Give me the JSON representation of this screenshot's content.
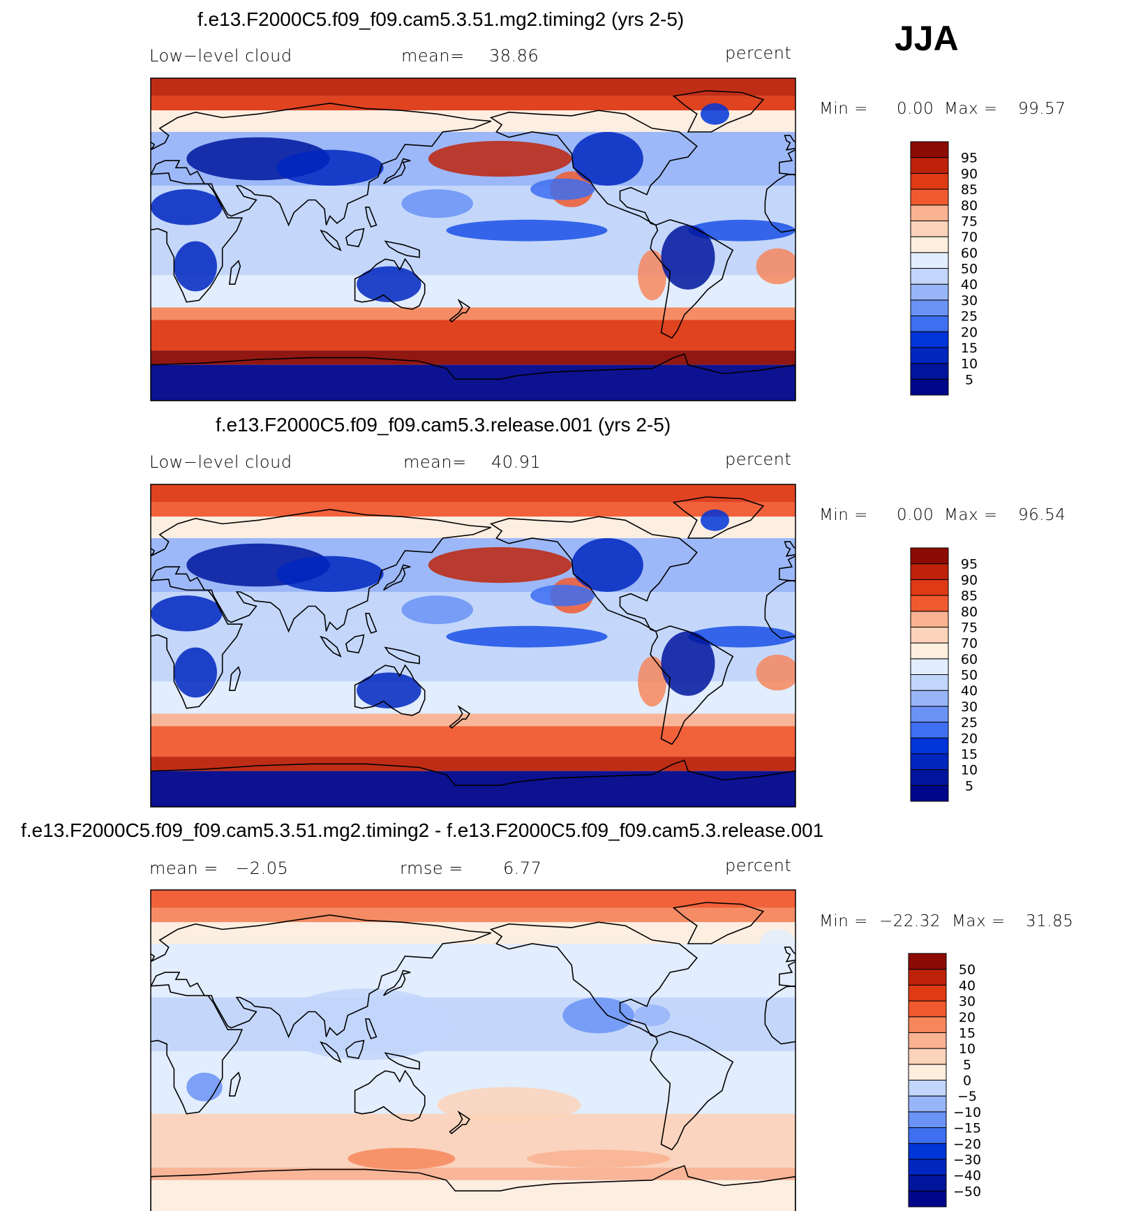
{
  "season": "JJA",
  "colors": {
    "abs": [
      "#00068a",
      "#00159c",
      "#0026c0",
      "#0035d8",
      "#1a50e6",
      "#3d6ff0",
      "#6a93f5",
      "#98b5f8",
      "#c2d6fb",
      "#e2edfd",
      "#fdeede",
      "#fbd3ba",
      "#f9b292",
      "#f6875d",
      "#f15a2f",
      "#de3a14",
      "#be230a",
      "#8c0c05"
    ],
    "diff": [
      "#00068a",
      "#00159c",
      "#0026c0",
      "#0035d8",
      "#3d6ff0",
      "#6a93f5",
      "#98b5f8",
      "#c2d6fb",
      "#e2edfd",
      "#fdeede",
      "#fbd3ba",
      "#f9b292",
      "#f6875d",
      "#f15a2f",
      "#de3a14",
      "#be230a",
      "#8c0c05"
    ]
  },
  "panels": [
    {
      "title": "f.e13.F2000C5.f09_f09.cam5.3.51.mg2.timing2 (yrs 2-5)",
      "left": "Low−level cloud",
      "center_label": "mean=",
      "center_value": "38.86",
      "units": "percent",
      "min_label": "Min =",
      "min_value": "0.00",
      "max_label": "Max =",
      "max_value": "99.57",
      "legend_labels": [
        "5",
        "10",
        "15",
        "20",
        "25",
        "30",
        "40",
        "50",
        "60",
        "70",
        "75",
        "80",
        "85",
        "90",
        "95"
      ]
    },
    {
      "title": "f.e13.F2000C5.f09_f09.cam5.3.release.001 (yrs 2-5)",
      "left": "Low−level cloud",
      "center_label": "mean=",
      "center_value": "40.91",
      "units": "percent",
      "min_label": "Min =",
      "min_value": "0.00",
      "max_label": "Max =",
      "max_value": "96.54",
      "legend_labels": [
        "5",
        "10",
        "15",
        "20",
        "25",
        "30",
        "40",
        "50",
        "60",
        "70",
        "75",
        "80",
        "85",
        "90",
        "95"
      ]
    },
    {
      "title": "f.e13.F2000C5.f09_f09.cam5.3.51.mg2.timing2 - f.e13.F2000C5.f09_f09.cam5.3.release.001",
      "left": "mean =   −2.05",
      "center_label": "rmse =",
      "center_value": "6.77",
      "units": "percent",
      "min_label": "Min =",
      "min_value": "−22.32",
      "max_label": "Max =",
      "max_value": "31.85",
      "legend_labels": [
        "−50",
        "−40",
        "−30",
        "−20",
        "−15",
        "−10",
        "−5",
        "0",
        "5",
        "10",
        "15",
        "20",
        "30",
        "40",
        "50"
      ]
    }
  ],
  "chart_data": [
    {
      "type": "heatmap",
      "title": "f.e13.F2000C5.f09_f09.cam5.3.51.mg2.timing2 (yrs 2-5)",
      "variable": "Low−level cloud",
      "units": "percent",
      "mean": 38.86,
      "min": 0.0,
      "max": 99.57,
      "contour_levels": [
        5,
        10,
        15,
        20,
        25,
        30,
        40,
        50,
        60,
        70,
        75,
        80,
        85,
        90,
        95
      ]
    },
    {
      "type": "heatmap",
      "title": "f.e13.F2000C5.f09_f09.cam5.3.release.001 (yrs 2-5)",
      "variable": "Low−level cloud",
      "units": "percent",
      "mean": 40.91,
      "min": 0.0,
      "max": 96.54,
      "contour_levels": [
        5,
        10,
        15,
        20,
        25,
        30,
        40,
        50,
        60,
        70,
        75,
        80,
        85,
        90,
        95
      ]
    },
    {
      "type": "heatmap",
      "title": "f.e13.F2000C5.f09_f09.cam5.3.51.mg2.timing2 - f.e13.F2000C5.f09_f09.cam5.3.release.001",
      "units": "percent",
      "mean": -2.05,
      "rmse": 6.77,
      "min": -22.32,
      "max": 31.85,
      "contour_levels": [
        -50,
        -40,
        -30,
        -20,
        -15,
        -10,
        -5,
        0,
        5,
        10,
        15,
        20,
        30,
        40,
        50
      ]
    }
  ]
}
